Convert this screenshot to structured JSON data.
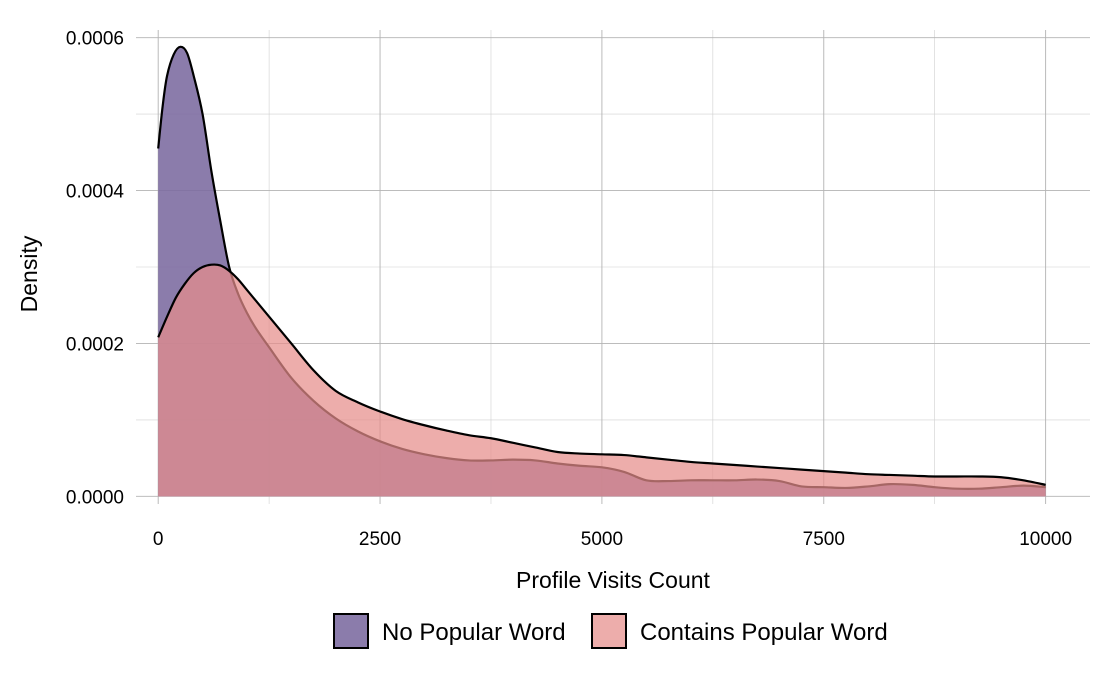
{
  "chart_data": {
    "type": "area",
    "title": "",
    "xlabel": "Profile Visits Count",
    "ylabel": "Density",
    "xlim": [
      -250,
      10500
    ],
    "ylim": [
      -1e-05,
      0.00061
    ],
    "x_ticks": [
      0,
      2500,
      5000,
      7500,
      10000
    ],
    "x_tick_labels": [
      "0",
      "2500",
      "5000",
      "7500",
      "10000"
    ],
    "x_minor_ticks": [
      1250,
      3750,
      6250,
      8750
    ],
    "y_ticks": [
      0,
      0.0002,
      0.0004,
      0.0006
    ],
    "y_tick_labels": [
      "0.0000",
      "0.0002",
      "0.0004",
      "0.0006"
    ],
    "y_minor_ticks": [
      0.0001,
      0.0003,
      0.0005
    ],
    "grid": true,
    "legend_position": "bottom",
    "series": [
      {
        "name": "No Popular Word",
        "color": "#7b6a9f",
        "opacity": 0.88,
        "points": [
          [
            0,
            0.000455
          ],
          [
            50,
            0.00051
          ],
          [
            100,
            0.00055
          ],
          [
            175,
            0.000578
          ],
          [
            250,
            0.000588
          ],
          [
            325,
            0.00058
          ],
          [
            400,
            0.00055
          ],
          [
            500,
            0.0005
          ],
          [
            600,
            0.000425
          ],
          [
            700,
            0.00036
          ],
          [
            800,
            0.0003
          ],
          [
            900,
            0.000265
          ],
          [
            1000,
            0.00024
          ],
          [
            1100,
            0.00022
          ],
          [
            1250,
            0.000195
          ],
          [
            1500,
            0.000155
          ],
          [
            1750,
            0.000125
          ],
          [
            2000,
            0.000102
          ],
          [
            2250,
            8.5e-05
          ],
          [
            2500,
            7.2e-05
          ],
          [
            2750,
            6.2e-05
          ],
          [
            3000,
            5.5e-05
          ],
          [
            3250,
            5e-05
          ],
          [
            3500,
            4.7e-05
          ],
          [
            3750,
            4.7e-05
          ],
          [
            4000,
            4.8e-05
          ],
          [
            4250,
            4.7e-05
          ],
          [
            4500,
            4.3e-05
          ],
          [
            4750,
            4e-05
          ],
          [
            5000,
            3.8e-05
          ],
          [
            5250,
            3.2e-05
          ],
          [
            5500,
            2.1e-05
          ],
          [
            5750,
            2e-05
          ],
          [
            6000,
            2.1e-05
          ],
          [
            6250,
            2.1e-05
          ],
          [
            6500,
            2.1e-05
          ],
          [
            6750,
            2.2e-05
          ],
          [
            7000,
            2e-05
          ],
          [
            7250,
            1.3e-05
          ],
          [
            7500,
            1.2e-05
          ],
          [
            7750,
            1.1e-05
          ],
          [
            8000,
            1.3e-05
          ],
          [
            8250,
            1.6e-05
          ],
          [
            8500,
            1.5e-05
          ],
          [
            8750,
            1.2e-05
          ],
          [
            9000,
            1e-05
          ],
          [
            9250,
            1e-05
          ],
          [
            9500,
            1.2e-05
          ],
          [
            9750,
            1.4e-05
          ],
          [
            10000,
            1.2e-05
          ]
        ]
      },
      {
        "name": "Contains Popular Word",
        "color": "#e68e8b",
        "opacity": 0.72,
        "points": [
          [
            0,
            0.000208
          ],
          [
            100,
            0.000235
          ],
          [
            200,
            0.00026
          ],
          [
            300,
            0.000278
          ],
          [
            400,
            0.000292
          ],
          [
            500,
            0.0003
          ],
          [
            600,
            0.000303
          ],
          [
            700,
            0.000302
          ],
          [
            800,
            0.000295
          ],
          [
            900,
            0.000284
          ],
          [
            1000,
            0.00027
          ],
          [
            1250,
            0.000235
          ],
          [
            1500,
            0.0002
          ],
          [
            1750,
            0.000165
          ],
          [
            2000,
            0.000138
          ],
          [
            2250,
            0.000123
          ],
          [
            2500,
            0.000111
          ],
          [
            2750,
            0.000101
          ],
          [
            3000,
            9.3e-05
          ],
          [
            3250,
            8.6e-05
          ],
          [
            3500,
            8e-05
          ],
          [
            3750,
            7.6e-05
          ],
          [
            4000,
            7e-05
          ],
          [
            4250,
            6.4e-05
          ],
          [
            4500,
            5.8e-05
          ],
          [
            4750,
            5.6e-05
          ],
          [
            5000,
            5.5e-05
          ],
          [
            5250,
            5.4e-05
          ],
          [
            5500,
            5.1e-05
          ],
          [
            5750,
            4.8e-05
          ],
          [
            6000,
            4.5e-05
          ],
          [
            6250,
            4.3e-05
          ],
          [
            6500,
            4.1e-05
          ],
          [
            6750,
            3.9e-05
          ],
          [
            7000,
            3.7e-05
          ],
          [
            7250,
            3.5e-05
          ],
          [
            7500,
            3.3e-05
          ],
          [
            7750,
            3.1e-05
          ],
          [
            8000,
            2.9e-05
          ],
          [
            8250,
            2.8e-05
          ],
          [
            8500,
            2.7e-05
          ],
          [
            8750,
            2.6e-05
          ],
          [
            9000,
            2.6e-05
          ],
          [
            9250,
            2.6e-05
          ],
          [
            9500,
            2.5e-05
          ],
          [
            9750,
            2.1e-05
          ],
          [
            10000,
            1.5e-05
          ]
        ]
      }
    ]
  }
}
